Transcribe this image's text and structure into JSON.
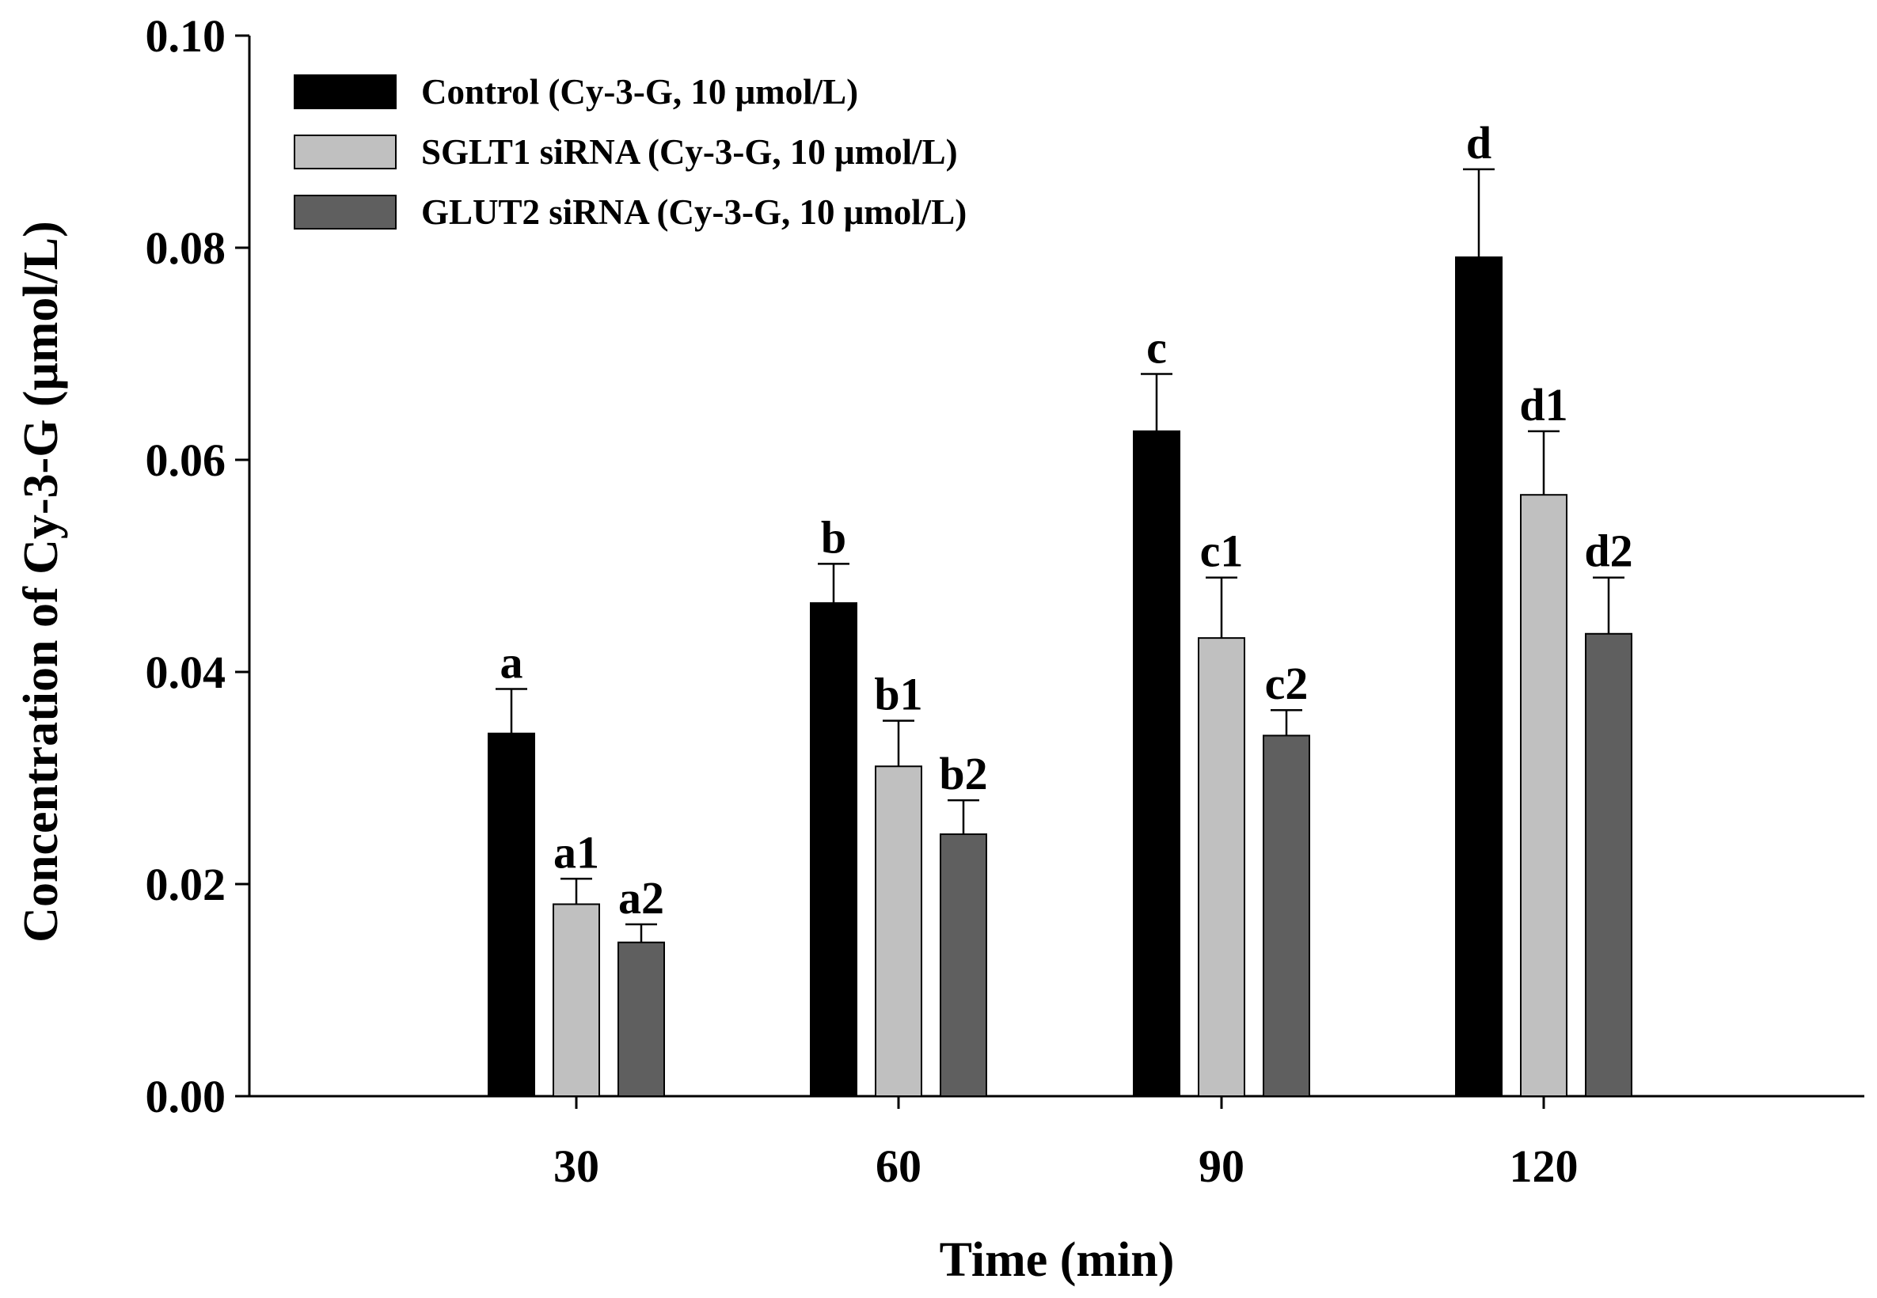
{
  "chart_data": {
    "type": "bar",
    "title": "",
    "xlabel": "Time (min)",
    "ylabel": "Concentration of Cy-3-G (μmol/L)",
    "ylim": [
      0,
      0.1
    ],
    "yticks": [
      "0.00",
      "0.02",
      "0.04",
      "0.06",
      "0.08",
      "0.10"
    ],
    "categories": [
      "30",
      "60",
      "90",
      "120"
    ],
    "legend_position": "top-left",
    "series": [
      {
        "name": "Control (Cy-3-G, 10 μmol/L)",
        "color": "#000000",
        "values": [
          0.0342,
          0.0465,
          0.0627,
          0.0791
        ],
        "errors": [
          0.0042,
          0.0037,
          0.0054,
          0.0083
        ],
        "labels": [
          "a",
          "b",
          "c",
          "d"
        ]
      },
      {
        "name": "SGLT1 siRNA (Cy-3-G, 10 μmol/L)",
        "color": "#c0c0c0",
        "values": [
          0.0181,
          0.0311,
          0.0432,
          0.0567
        ],
        "errors": [
          0.0024,
          0.0043,
          0.0057,
          0.006
        ],
        "labels": [
          "a1",
          "b1",
          "c1",
          "d1"
        ]
      },
      {
        "name": "GLUT2 siRNA (Cy-3-G, 10 μmol/L)",
        "color": "#5f5f5f",
        "values": [
          0.0145,
          0.0247,
          0.034,
          0.0436
        ],
        "errors": [
          0.0017,
          0.0032,
          0.0024,
          0.0053
        ],
        "labels": [
          "a2",
          "b2",
          "c2",
          "d2"
        ]
      }
    ]
  }
}
